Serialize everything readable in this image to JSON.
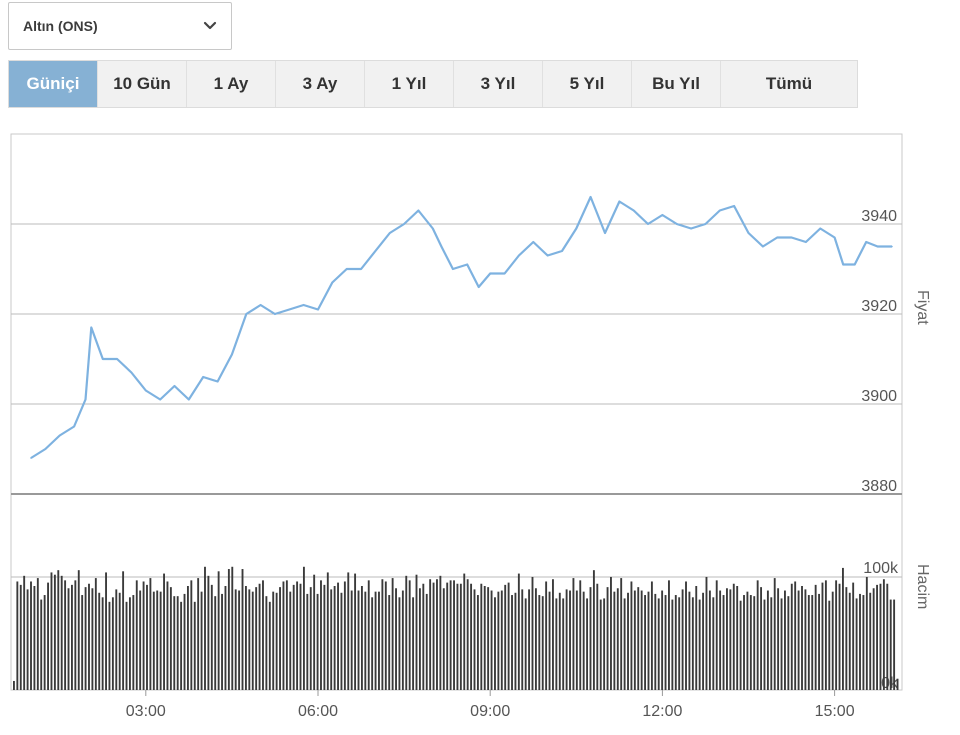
{
  "instrument_select": {
    "value": "Altın (ONS)"
  },
  "tabs": [
    "Güniçi",
    "10 Gün",
    "1 Ay",
    "3 Ay",
    "1 Yıl",
    "3 Yıl",
    "5 Yıl",
    "Bu Yıl",
    "Tümü"
  ],
  "active_tab": 0,
  "colors": {
    "price_line": "#7eb2e0",
    "volume_bar": "#3a3a3a",
    "grid": "#bbbbbb",
    "active_tab": "#86b1d4"
  },
  "chart_data": [
    {
      "type": "line",
      "ylabel": "Fiyat",
      "ylim": [
        3880,
        3960
      ],
      "yticks": [
        3880,
        3900,
        3920,
        3940
      ],
      "x_ticks": [
        "03:00",
        "06:00",
        "09:00",
        "12:00",
        "15:00"
      ],
      "x_tick_hours": [
        3,
        6,
        9,
        12,
        15
      ],
      "xlim": [
        1.0,
        16.0
      ],
      "grid": true,
      "x": [
        1.0,
        1.25,
        1.5,
        1.75,
        1.95,
        2.05,
        2.25,
        2.5,
        2.75,
        3.0,
        3.25,
        3.5,
        3.75,
        4.0,
        4.25,
        4.5,
        4.75,
        5.0,
        5.25,
        5.5,
        5.75,
        6.0,
        6.25,
        6.5,
        6.75,
        7.0,
        7.25,
        7.5,
        7.75,
        8.0,
        8.15,
        8.35,
        8.6,
        8.8,
        9.0,
        9.25,
        9.5,
        9.75,
        10.0,
        10.25,
        10.5,
        10.75,
        11.0,
        11.25,
        11.5,
        11.75,
        12.0,
        12.25,
        12.5,
        12.75,
        13.0,
        13.25,
        13.5,
        13.75,
        14.0,
        14.25,
        14.5,
        14.75,
        15.0,
        15.15,
        15.35,
        15.55,
        15.75,
        16.0
      ],
      "values": [
        3888,
        3890,
        3893,
        3895,
        3901,
        3917,
        3910,
        3910,
        3907,
        3903,
        3901,
        3904,
        3901,
        3906,
        3905,
        3911,
        3920,
        3922,
        3920,
        3921,
        3922,
        3921,
        3927,
        3930,
        3930,
        3934,
        3938,
        3940,
        3943,
        3939,
        3935,
        3930,
        3931,
        3926,
        3929,
        3929,
        3933,
        3936,
        3933,
        3934,
        3939,
        3946,
        3938,
        3945,
        3943,
        3940,
        3942,
        3940,
        3939,
        3940,
        3943,
        3944,
        3938,
        3935,
        3937,
        3937,
        3936,
        3939,
        3937,
        3931,
        3931,
        3936,
        3935,
        3935
      ]
    },
    {
      "type": "bar",
      "ylabel": "Hacim",
      "yticks_labels": [
        "100k",
        "0k"
      ],
      "ylim": [
        0,
        115000
      ],
      "x_range": [
        1.0,
        16.0
      ],
      "values": [
        8000,
        96000,
        93000,
        101000,
        89000,
        96000,
        92000,
        99000,
        80000,
        84000,
        95000,
        104000,
        102000,
        106000,
        101000,
        97000,
        90000,
        93000,
        97000,
        106000,
        84000,
        91000,
        94000,
        90000,
        99000,
        86000,
        82000,
        104000,
        78000,
        82000,
        89000,
        86000,
        105000,
        78000,
        82000,
        84000,
        97000,
        88000,
        96000,
        93000,
        99000,
        87000,
        88000,
        87000,
        103000,
        96000,
        91000,
        83000,
        83000,
        78000,
        85000,
        92000,
        97000,
        78000,
        99000,
        87000,
        109000,
        101000,
        93000,
        83000,
        105000,
        85000,
        92000,
        107000,
        109000,
        89000,
        88000,
        107000,
        92000,
        89000,
        87000,
        91000,
        94000,
        97000,
        83000,
        78000,
        87000,
        86000,
        91000,
        96000,
        97000,
        87000,
        93000,
        96000,
        94000,
        109000,
        85000,
        91000,
        102000,
        85000,
        97000,
        93000,
        104000,
        89000,
        92000,
        95000,
        86000,
        96000,
        104000,
        88000,
        103000,
        88000,
        92000,
        87000,
        97000,
        82000,
        87000,
        87000,
        98000,
        96000,
        84000,
        99000,
        90000,
        82000,
        88000,
        101000,
        97000,
        82000,
        102000,
        90000,
        94000,
        85000,
        98000,
        95000,
        98000,
        101000,
        90000,
        95000,
        97000,
        97000,
        94000,
        94000,
        103000,
        98000,
        94000,
        89000,
        84000,
        94000,
        92000,
        91000,
        88000,
        82000,
        87000,
        88000,
        93000,
        95000,
        84000,
        86000,
        103000,
        89000,
        81000,
        89000,
        100000,
        90000,
        84000,
        83000,
        96000,
        87000,
        98000,
        81000,
        86000,
        81000,
        89000,
        88000,
        99000,
        88000,
        97000,
        87000,
        81000,
        91000,
        106000,
        94000,
        80000,
        81000,
        91000,
        100000,
        87000,
        90000,
        99000,
        81000,
        86000,
        96000,
        88000,
        91000,
        88000,
        84000,
        87000,
        96000,
        85000,
        81000,
        88000,
        84000,
        97000,
        80000,
        84000,
        82000,
        89000,
        96000,
        87000,
        82000,
        92000,
        80000,
        86000,
        100000,
        88000,
        82000,
        97000,
        88000,
        84000,
        90000,
        89000,
        94000,
        92000,
        79000,
        84000,
        87000,
        84000,
        83000,
        97000,
        91000,
        80000,
        88000,
        82000,
        99000,
        90000,
        81000,
        88000,
        83000,
        94000,
        96000,
        88000,
        92000,
        89000,
        84000,
        84000,
        93000,
        85000,
        95000,
        97000,
        79000,
        87000,
        97000,
        94000,
        108000,
        91000,
        86000,
        95000,
        81000,
        85000,
        84000,
        100000,
        86000,
        90000,
        93000,
        94000,
        98000,
        94000,
        80000,
        80000,
        10000
      ]
    }
  ]
}
